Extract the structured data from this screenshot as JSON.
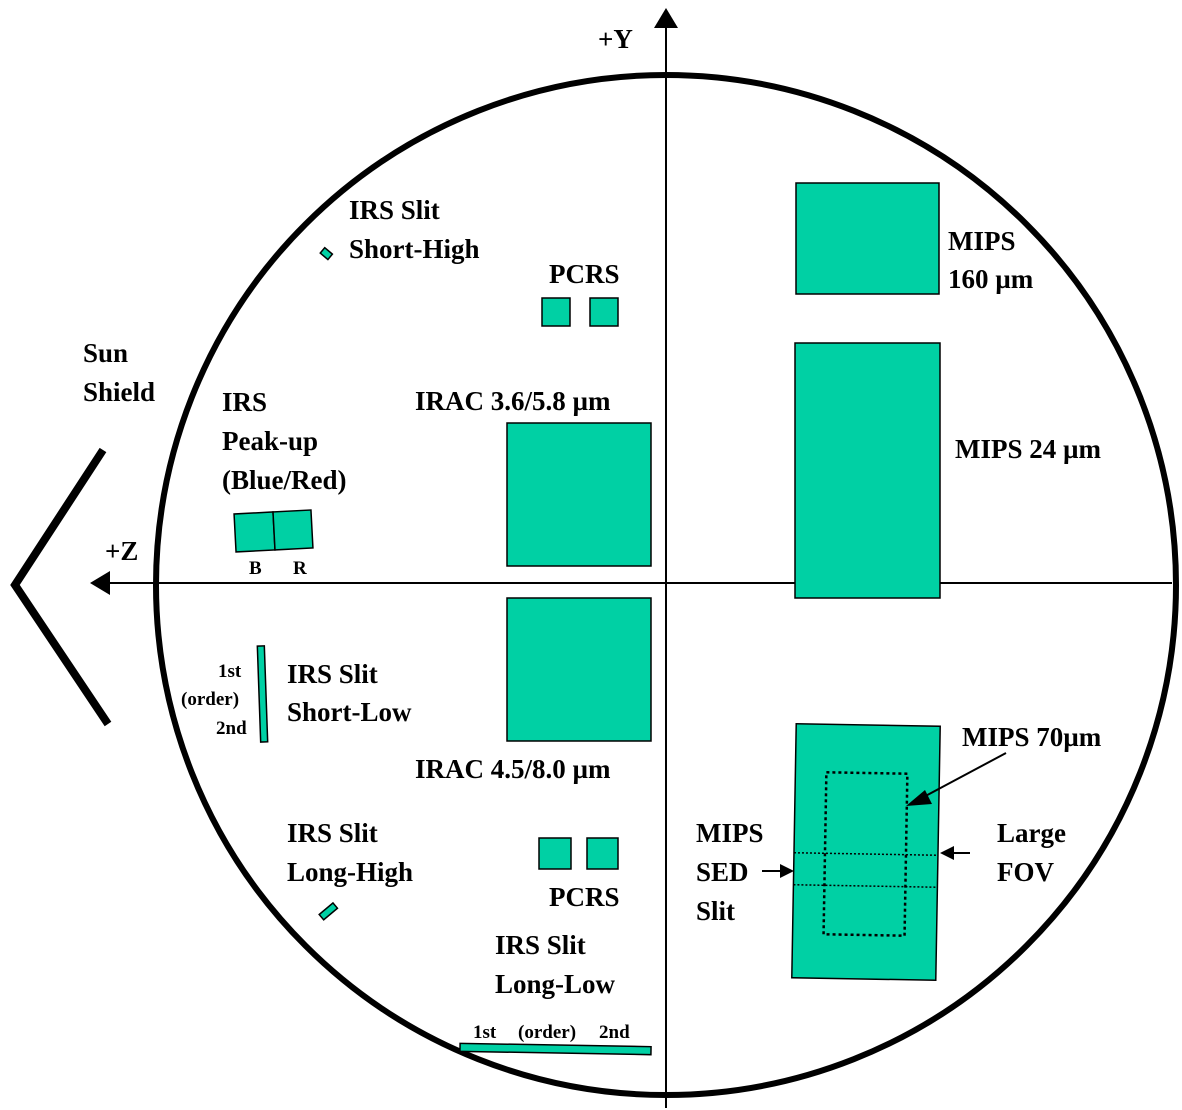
{
  "axes": {
    "y_label": "+Y",
    "z_label": "+Z"
  },
  "sun_shield": {
    "line1": "Sun",
    "line2": "Shield"
  },
  "irs_slit_short_high": {
    "line1": "IRS Slit",
    "line2": "Short-High"
  },
  "pcrs_top": {
    "label": "PCRS"
  },
  "pcrs_bottom": {
    "label": "PCRS"
  },
  "mips_160": {
    "line1": "MIPS",
    "line2": "160 µm"
  },
  "irac_36_58": {
    "label": "IRAC 3.6/5.8 µm"
  },
  "irac_45_80": {
    "label": "IRAC 4.5/8.0 µm"
  },
  "mips_24": {
    "label": "MIPS 24 µm"
  },
  "irs_peakup": {
    "line1": "IRS",
    "line2": "Peak-up",
    "line3": "(Blue/Red)",
    "b_label": "B",
    "r_label": "R"
  },
  "irs_slit_short_low": {
    "line1": "IRS Slit",
    "line2": "Short-Low",
    "order_1st": "1st",
    "order_word": "(order)",
    "order_2nd": "2nd"
  },
  "irs_slit_long_high": {
    "line1": "IRS Slit",
    "line2": "Long-High"
  },
  "irs_slit_long_low": {
    "line1": "IRS Slit",
    "line2": "Long-Low",
    "order_1st": "1st",
    "order_word": "(order)",
    "order_2nd": "2nd"
  },
  "mips_70": {
    "label": "MIPS 70µm"
  },
  "mips_sed": {
    "line1": "MIPS",
    "line2": "SED",
    "line3": "Slit"
  },
  "large_fov": {
    "line1": "Large",
    "line2": "FOV"
  },
  "colors": {
    "footprint_fill": "#00d0a4",
    "line": "#000000",
    "background": "#ffffff"
  }
}
